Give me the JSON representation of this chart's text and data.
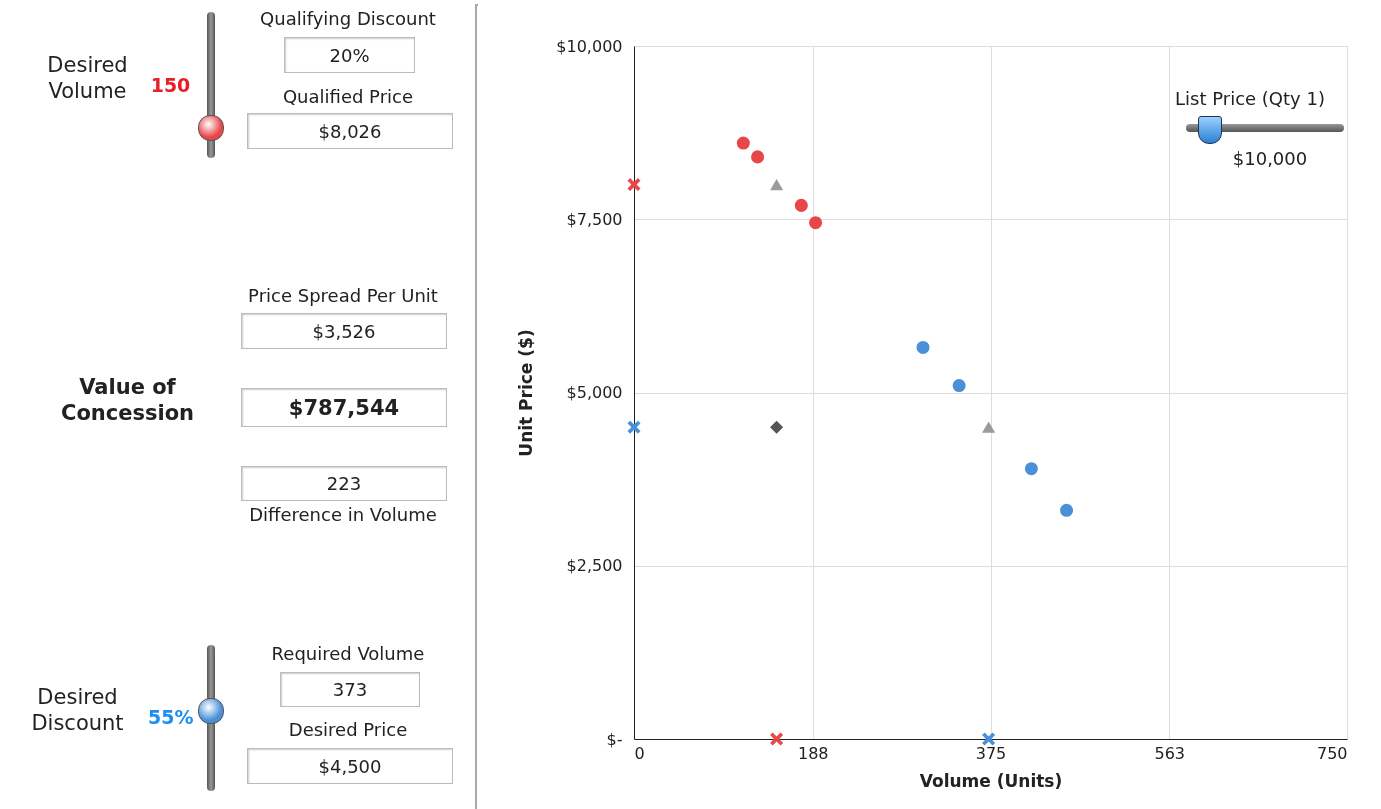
{
  "chart_data": [
    {
      "type": "other",
      "annotations": [
        "Desired Volume",
        "150",
        "Qualifying Discount",
        "20%",
        "Qualified Price",
        "$8,026",
        "Price Spread Per Unit",
        "$3,526",
        "Value of Concession",
        "$787,544",
        "223",
        "Difference in Volume",
        "Desired Discount",
        "55%",
        "Required Volume",
        "373",
        "Desired Price",
        "$4,500"
      ]
    },
    {
      "type": "scatter",
      "xlabel": "Volume (Units)",
      "ylabel": "Unit Price ($)",
      "annotations": [
        "List Price (Qty 1)",
        "$10,000"
      ],
      "xlim": [
        0,
        750
      ],
      "xticks": [
        0,
        188,
        375,
        563,
        750
      ],
      "ylim": [
        0,
        10000
      ],
      "yticks": [
        {
          "value": 0,
          "label": "$-"
        },
        {
          "value": 2500,
          "label": "$2,500"
        },
        {
          "value": 5000,
          "label": "$5,000"
        },
        {
          "value": 7500,
          "label": "$7,500"
        },
        {
          "value": 10000,
          "label": "$10,000"
        }
      ],
      "grid": true,
      "series": [
        {
          "color": "#e8474a",
          "marker": "circle",
          "x": [
            115,
            130,
            176,
            191
          ],
          "values": [
            8600,
            8400,
            7700,
            7450
          ]
        },
        {
          "color": "#4a90d9",
          "marker": "circle",
          "x": [
            304,
            342,
            418,
            455
          ],
          "values": [
            5650,
            5100,
            3900,
            3300
          ]
        },
        {
          "color": "#9a9a9a",
          "marker": "triangle",
          "x": [
            150,
            373
          ],
          "values": [
            8000,
            4500
          ]
        },
        {
          "color": "#555555",
          "marker": "diamond",
          "x": [
            150
          ],
          "values": [
            4500
          ]
        },
        {
          "color": "#e8474a",
          "marker": "cross",
          "x": [
            0,
            150
          ],
          "values": [
            8000,
            0
          ]
        },
        {
          "color": "#4a90d9",
          "marker": "cross",
          "x": [
            0,
            373
          ],
          "values": [
            4500,
            0
          ]
        }
      ]
    }
  ]
}
